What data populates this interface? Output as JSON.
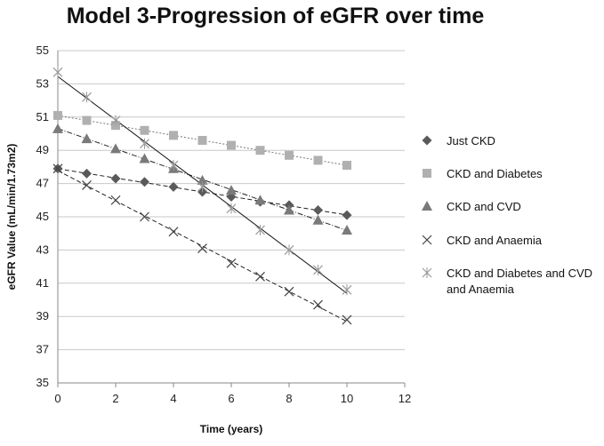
{
  "chart_data": {
    "type": "scatter",
    "title": "Model 3-Progression of eGFR over time",
    "xlabel": "Time (years)",
    "ylabel": "eGFR Value (mL/min/1.73m2)",
    "xlim": [
      0,
      12
    ],
    "ylim": [
      35,
      55
    ],
    "x_ticks": [
      "0",
      "2",
      "4",
      "6",
      "8",
      "10",
      "12"
    ],
    "y_ticks": [
      "35",
      "37",
      "39",
      "41",
      "43",
      "45",
      "47",
      "49",
      "51",
      "53",
      "55"
    ],
    "grid": "horizontal",
    "legend_position": "right",
    "x": [
      0,
      1,
      2,
      3,
      4,
      5,
      6,
      7,
      8,
      9,
      10
    ],
    "series": [
      {
        "name": "Just CKD",
        "marker": "diamond",
        "color": "#5a5a5a",
        "trendline": "dashed",
        "values": [
          47.9,
          47.6,
          47.3,
          47.1,
          46.8,
          46.5,
          46.2,
          45.9,
          45.7,
          45.4,
          45.1
        ]
      },
      {
        "name": "CKD and Diabetes",
        "marker": "square",
        "color": "#b0b0b0",
        "trendline": "dotted",
        "values": [
          51.1,
          50.8,
          50.5,
          50.2,
          49.9,
          49.6,
          49.3,
          49.0,
          48.7,
          48.4,
          48.1
        ]
      },
      {
        "name": "CKD and CVD",
        "marker": "triangle",
        "color": "#7a7a7a",
        "trendline": "dashdot",
        "values": [
          50.3,
          49.7,
          49.1,
          48.5,
          47.9,
          47.2,
          46.6,
          46.0,
          45.4,
          44.8,
          44.2
        ]
      },
      {
        "name": "CKD and Anaemia",
        "marker": "x",
        "color": "#444444",
        "trendline": "dashed",
        "values": [
          47.9,
          46.9,
          46.0,
          45.0,
          44.1,
          43.1,
          42.2,
          41.4,
          40.5,
          39.7,
          38.8
        ]
      },
      {
        "name": "CKD and Diabetes and CVD and Anaemia",
        "marker": "star",
        "color": "#9a9a9a",
        "trendline": "solid",
        "values": [
          53.7,
          52.2,
          50.8,
          49.4,
          48.1,
          46.8,
          45.5,
          44.2,
          43.0,
          41.8,
          40.6
        ]
      }
    ]
  }
}
